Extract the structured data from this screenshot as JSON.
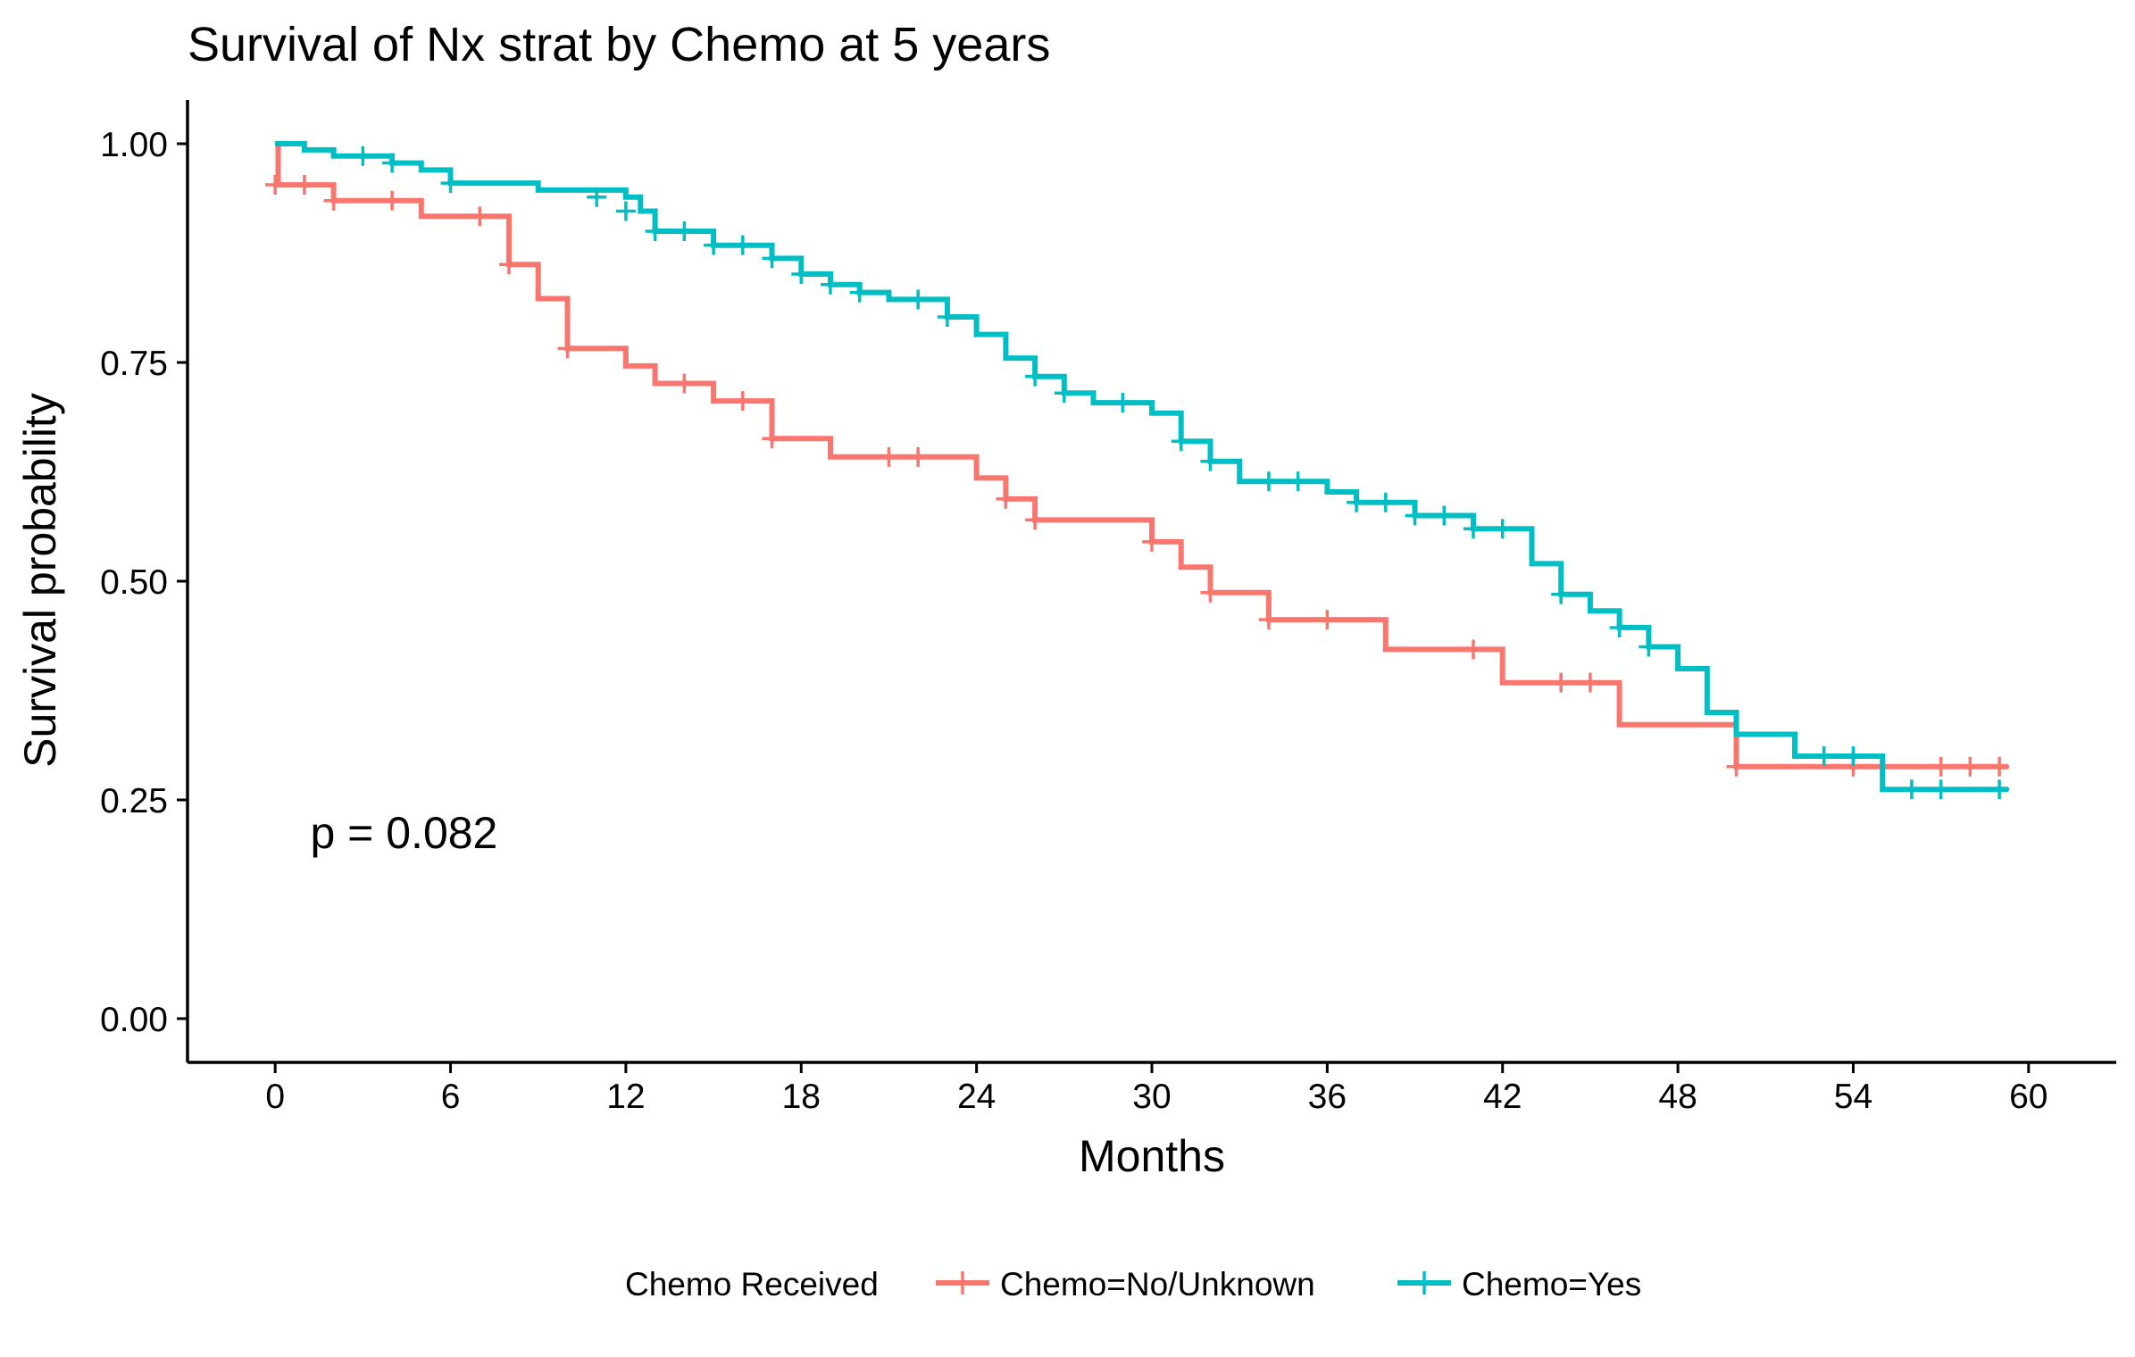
{
  "chart_data": {
    "type": "line",
    "subtype": "kaplan-meier step survival curve",
    "title": "Survival of Nx strat by Chemo at 5 years",
    "xlabel": "Months",
    "ylabel": "Survival probability",
    "xlim": [
      -3,
      63
    ],
    "ylim": [
      -0.05,
      1.05
    ],
    "xticks": [
      0,
      6,
      12,
      18,
      24,
      30,
      36,
      42,
      48,
      54,
      60
    ],
    "yticks": [
      0.0,
      0.25,
      0.5,
      0.75,
      1.0
    ],
    "ytick_labels": [
      "0.00",
      "0.25",
      "0.50",
      "0.75",
      "1.00"
    ],
    "grid": false,
    "annotation": {
      "text": "p = 0.082",
      "x": 1.2,
      "y": 0.195
    },
    "legend": {
      "title": "Chemo Received",
      "position": "bottom",
      "entries": [
        "Chemo=No/Unknown",
        "Chemo=Yes"
      ]
    },
    "series": [
      {
        "name": "Chemo=No/Unknown",
        "color": "#F8766D",
        "steps": [
          [
            0,
            1.0
          ],
          [
            0.1,
            0.953
          ],
          [
            2,
            0.935
          ],
          [
            5,
            0.917
          ],
          [
            8,
            0.862
          ],
          [
            9,
            0.823
          ],
          [
            10,
            0.766
          ],
          [
            12,
            0.746
          ],
          [
            13,
            0.726
          ],
          [
            15,
            0.706
          ],
          [
            17,
            0.663
          ],
          [
            19,
            0.642
          ],
          [
            24,
            0.618
          ],
          [
            25,
            0.594
          ],
          [
            26,
            0.57
          ],
          [
            30,
            0.545
          ],
          [
            31,
            0.516
          ],
          [
            32,
            0.487
          ],
          [
            34,
            0.456
          ],
          [
            38,
            0.422
          ],
          [
            42,
            0.384
          ],
          [
            46,
            0.336
          ],
          [
            50,
            0.288
          ],
          [
            59.3,
            0.288
          ]
        ],
        "censored": [
          [
            0,
            0.953
          ],
          [
            1,
            0.953
          ],
          [
            2,
            0.935
          ],
          [
            4,
            0.935
          ],
          [
            7,
            0.917
          ],
          [
            8,
            0.862
          ],
          [
            10,
            0.766
          ],
          [
            14,
            0.726
          ],
          [
            16,
            0.706
          ],
          [
            17,
            0.663
          ],
          [
            21,
            0.642
          ],
          [
            22,
            0.642
          ],
          [
            25,
            0.594
          ],
          [
            26,
            0.57
          ],
          [
            30,
            0.545
          ],
          [
            32,
            0.487
          ],
          [
            34,
            0.456
          ],
          [
            36,
            0.456
          ],
          [
            41,
            0.422
          ],
          [
            44,
            0.384
          ],
          [
            45,
            0.384
          ],
          [
            50,
            0.288
          ],
          [
            54,
            0.288
          ],
          [
            57,
            0.288
          ],
          [
            58,
            0.288
          ],
          [
            59,
            0.288
          ]
        ]
      },
      {
        "name": "Chemo=Yes",
        "color": "#00BFC4",
        "steps": [
          [
            0,
            1.0
          ],
          [
            1,
            0.993
          ],
          [
            2,
            0.986
          ],
          [
            4,
            0.978
          ],
          [
            5,
            0.97
          ],
          [
            6,
            0.955
          ],
          [
            9,
            0.947
          ],
          [
            12,
            0.939
          ],
          [
            12.5,
            0.923
          ],
          [
            13,
            0.9
          ],
          [
            15,
            0.884
          ],
          [
            17,
            0.869
          ],
          [
            18,
            0.851
          ],
          [
            19,
            0.839
          ],
          [
            20,
            0.83
          ],
          [
            21,
            0.822
          ],
          [
            23,
            0.802
          ],
          [
            24,
            0.782
          ],
          [
            25,
            0.755
          ],
          [
            26,
            0.734
          ],
          [
            27,
            0.715
          ],
          [
            28,
            0.704
          ],
          [
            30,
            0.692
          ],
          [
            31,
            0.66
          ],
          [
            32,
            0.637
          ],
          [
            33,
            0.614
          ],
          [
            36,
            0.602
          ],
          [
            37,
            0.59
          ],
          [
            39,
            0.575
          ],
          [
            41,
            0.56
          ],
          [
            43,
            0.52
          ],
          [
            44,
            0.485
          ],
          [
            45,
            0.466
          ],
          [
            46,
            0.447
          ],
          [
            47,
            0.425
          ],
          [
            48,
            0.4
          ],
          [
            49,
            0.35
          ],
          [
            50,
            0.325
          ],
          [
            52,
            0.3
          ],
          [
            55,
            0.262
          ],
          [
            59.3,
            0.262
          ]
        ],
        "censored": [
          [
            3,
            0.986
          ],
          [
            4,
            0.978
          ],
          [
            6,
            0.955
          ],
          [
            11,
            0.939
          ],
          [
            12,
            0.923
          ],
          [
            13,
            0.9
          ],
          [
            14,
            0.9
          ],
          [
            15,
            0.884
          ],
          [
            16,
            0.884
          ],
          [
            17,
            0.869
          ],
          [
            18,
            0.851
          ],
          [
            19,
            0.839
          ],
          [
            20,
            0.83
          ],
          [
            22,
            0.822
          ],
          [
            23,
            0.802
          ],
          [
            26,
            0.734
          ],
          [
            27,
            0.715
          ],
          [
            29,
            0.704
          ],
          [
            31,
            0.66
          ],
          [
            32,
            0.637
          ],
          [
            34,
            0.614
          ],
          [
            35,
            0.614
          ],
          [
            37,
            0.59
          ],
          [
            38,
            0.59
          ],
          [
            39,
            0.575
          ],
          [
            40,
            0.575
          ],
          [
            41,
            0.56
          ],
          [
            42,
            0.56
          ],
          [
            44,
            0.485
          ],
          [
            46,
            0.447
          ],
          [
            47,
            0.425
          ],
          [
            53,
            0.3
          ],
          [
            54,
            0.3
          ],
          [
            56,
            0.262
          ],
          [
            57,
            0.262
          ],
          [
            59,
            0.262
          ]
        ]
      }
    ]
  }
}
